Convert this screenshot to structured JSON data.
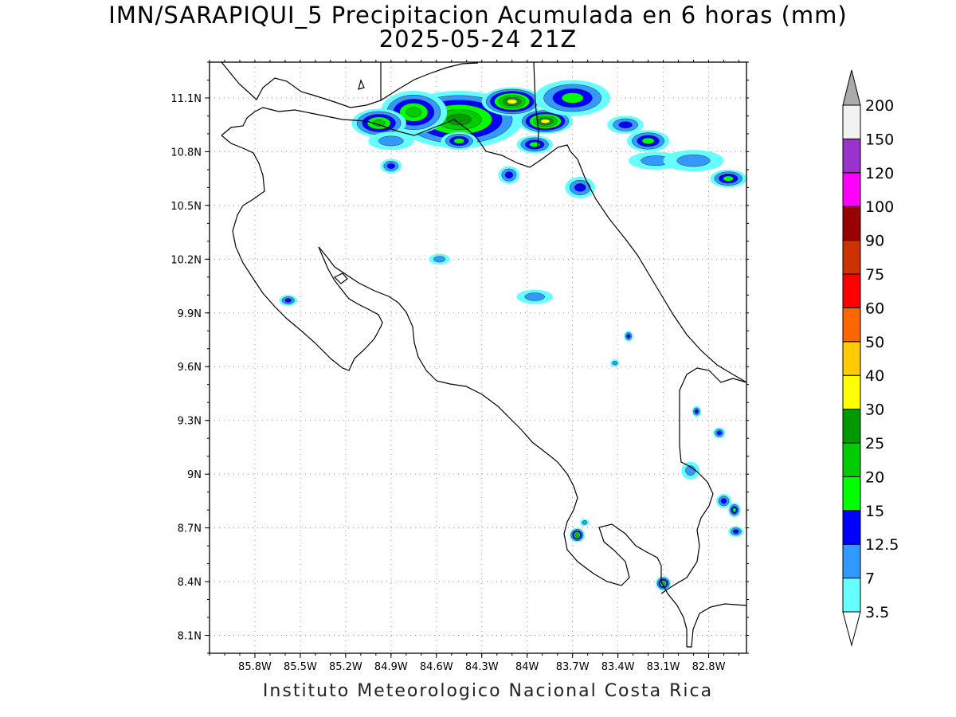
{
  "title_line1": "IMN/SARAPIQUI_5 Precipitacion Acumulada en 6 horas (mm)",
  "title_line2": "2025-05-24 21Z",
  "footer": "Instituto Meteorologico Nacional Costa Rica",
  "map": {
    "lon_range": [
      -86.1,
      -82.55
    ],
    "lat_range": [
      8.0,
      11.3
    ],
    "lat_ticks": [
      "11.1N",
      "10.8N",
      "10.5N",
      "10.2N",
      "9.9N",
      "9.6N",
      "9.3N",
      "9N",
      "8.7N",
      "8.4N",
      "8.1N"
    ],
    "lon_ticks": [
      "85.8W",
      "85.5W",
      "85.2W",
      "84.9W",
      "84.6W",
      "84.3W",
      "84W",
      "83.7W",
      "83.4W",
      "83.1W",
      "82.8W"
    ],
    "grid": true,
    "grid_style": "dotted"
  },
  "colorbar": {
    "levels": [
      "3.5",
      "7",
      "12.5",
      "15",
      "20",
      "25",
      "30",
      "40",
      "50",
      "60",
      "75",
      "90",
      "100",
      "120",
      "150",
      "200"
    ],
    "colors": [
      "#66ffff",
      "#3399ff",
      "#0000ff",
      "#00ff00",
      "#00cc00",
      "#009900",
      "#ffff00",
      "#ffcc00",
      "#ff6600",
      "#ff0000",
      "#cc3300",
      "#990000",
      "#ff00ff",
      "#9933cc",
      "#f2f2f2",
      "#aaaaaa"
    ],
    "below_color": "#ffffff"
  },
  "precip_cells": [
    {
      "lon": -84.45,
      "lat": 10.98,
      "rx": 0.42,
      "ry": 0.16,
      "level": 5
    },
    {
      "lon": -84.1,
      "lat": 11.08,
      "rx": 0.2,
      "ry": 0.08,
      "level": 6
    },
    {
      "lon": -83.88,
      "lat": 10.97,
      "rx": 0.18,
      "ry": 0.07,
      "level": 6
    },
    {
      "lon": -84.75,
      "lat": 11.02,
      "rx": 0.22,
      "ry": 0.12,
      "level": 4
    },
    {
      "lon": -83.7,
      "lat": 11.1,
      "rx": 0.25,
      "ry": 0.1,
      "level": 3
    },
    {
      "lon": -84.98,
      "lat": 10.96,
      "rx": 0.18,
      "ry": 0.08,
      "level": 4
    },
    {
      "lon": -84.45,
      "lat": 10.86,
      "rx": 0.12,
      "ry": 0.05,
      "level": 3
    },
    {
      "lon": -83.95,
      "lat": 10.84,
      "rx": 0.12,
      "ry": 0.05,
      "level": 3
    },
    {
      "lon": -83.2,
      "lat": 10.86,
      "rx": 0.14,
      "ry": 0.06,
      "level": 3
    },
    {
      "lon": -82.67,
      "lat": 10.65,
      "rx": 0.12,
      "ry": 0.05,
      "level": 3
    },
    {
      "lon": -83.65,
      "lat": 10.6,
      "rx": 0.1,
      "ry": 0.06,
      "level": 2
    },
    {
      "lon": -84.12,
      "lat": 10.67,
      "rx": 0.07,
      "ry": 0.05,
      "level": 2
    },
    {
      "lon": -84.9,
      "lat": 10.72,
      "rx": 0.07,
      "ry": 0.04,
      "level": 2
    },
    {
      "lon": -85.58,
      "lat": 9.97,
      "rx": 0.06,
      "ry": 0.03,
      "level": 2
    },
    {
      "lon": -84.58,
      "lat": 10.2,
      "rx": 0.07,
      "ry": 0.03,
      "level": 1
    },
    {
      "lon": -83.95,
      "lat": 9.99,
      "rx": 0.12,
      "ry": 0.04,
      "level": 1
    },
    {
      "lon": -83.33,
      "lat": 9.77,
      "rx": 0.03,
      "ry": 0.03,
      "level": 2
    },
    {
      "lon": -83.42,
      "lat": 9.62,
      "rx": 0.03,
      "ry": 0.02,
      "level": 1
    },
    {
      "lon": -82.88,
      "lat": 9.35,
      "rx": 0.03,
      "ry": 0.03,
      "level": 2
    },
    {
      "lon": -82.73,
      "lat": 9.23,
      "rx": 0.04,
      "ry": 0.03,
      "level": 2
    },
    {
      "lon": -82.92,
      "lat": 9.02,
      "rx": 0.06,
      "ry": 0.05,
      "level": 1
    },
    {
      "lon": -82.7,
      "lat": 8.85,
      "rx": 0.05,
      "ry": 0.04,
      "level": 2
    },
    {
      "lon": -82.63,
      "lat": 8.8,
      "rx": 0.04,
      "ry": 0.04,
      "level": 3
    },
    {
      "lon": -82.62,
      "lat": 8.68,
      "rx": 0.05,
      "ry": 0.03,
      "level": 2
    },
    {
      "lon": -83.67,
      "lat": 8.66,
      "rx": 0.05,
      "ry": 0.04,
      "level": 4
    },
    {
      "lon": -83.62,
      "lat": 8.73,
      "rx": 0.03,
      "ry": 0.02,
      "level": 1
    },
    {
      "lon": -83.1,
      "lat": 8.39,
      "rx": 0.05,
      "ry": 0.04,
      "level": 4
    },
    {
      "lon": -84.9,
      "lat": 10.86,
      "rx": 0.15,
      "ry": 0.05,
      "level": 1
    },
    {
      "lon": -83.35,
      "lat": 10.95,
      "rx": 0.12,
      "ry": 0.05,
      "level": 2
    },
    {
      "lon": -83.15,
      "lat": 10.75,
      "rx": 0.18,
      "ry": 0.05,
      "level": 1
    },
    {
      "lon": -82.9,
      "lat": 10.75,
      "rx": 0.2,
      "ry": 0.06,
      "level": 1
    }
  ]
}
